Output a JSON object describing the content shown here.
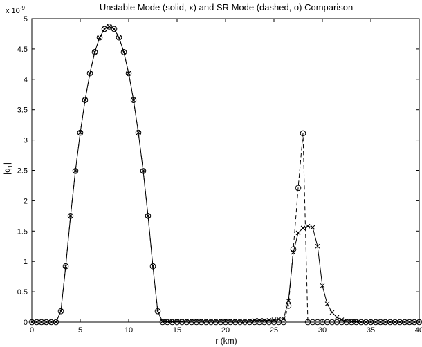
{
  "chart_data": {
    "type": "line",
    "title": "Unstable Mode (solid, x) and SR Mode (dashed, o) Comparison",
    "xlabel": "r (km)",
    "ylabel": "|q",
    "ylabel_sub": "1",
    "ylabel_end": "|",
    "y_exponent_label": "x 10",
    "y_exponent": "-9",
    "xlim": [
      0,
      40
    ],
    "ylim": [
      0,
      5
    ],
    "xticks": [
      "0",
      "5",
      "10",
      "15",
      "20",
      "25",
      "30",
      "35",
      "40"
    ],
    "yticks": [
      "0",
      "0.5",
      "1",
      "1.5",
      "2",
      "2.5",
      "3",
      "3.5",
      "4",
      "4.5",
      "5"
    ],
    "grid": false,
    "series": [
      {
        "name": "Unstable Mode",
        "line": "solid",
        "marker": "x",
        "x": [
          0,
          0.5,
          1,
          1.5,
          2,
          2.5,
          3,
          3.5,
          4,
          4.5,
          5,
          5.5,
          6,
          6.5,
          7,
          7.5,
          8,
          8.5,
          9,
          9.5,
          10,
          10.5,
          11,
          11.5,
          12,
          12.5,
          13,
          13.5,
          14,
          14.5,
          15,
          15.5,
          16,
          16.5,
          17,
          17.5,
          18,
          18.5,
          19,
          19.5,
          20,
          20.5,
          21,
          21.5,
          22,
          22.5,
          23,
          23.5,
          24,
          24.5,
          25,
          25.5,
          26,
          26.5,
          27,
          27.5,
          28,
          28.5,
          29,
          29.5,
          30,
          30.5,
          31,
          31.5,
          32,
          32.5,
          33,
          33.5,
          34,
          34.5,
          35,
          35.5,
          36,
          36.5,
          37,
          37.5,
          38,
          38.5,
          39,
          39.5,
          40
        ],
        "y": [
          0,
          0,
          0,
          0,
          0,
          0,
          0.18,
          0.92,
          1.75,
          2.49,
          3.12,
          3.66,
          4.1,
          4.45,
          4.69,
          4.83,
          4.87,
          4.83,
          4.69,
          4.45,
          4.1,
          3.66,
          3.12,
          2.49,
          1.75,
          0.92,
          0.18,
          0.01,
          0.01,
          0.01,
          0.01,
          0.01,
          0.02,
          0.02,
          0.02,
          0.02,
          0.02,
          0.02,
          0.02,
          0.02,
          0.02,
          0.02,
          0.02,
          0.02,
          0.02,
          0.02,
          0.03,
          0.03,
          0.03,
          0.03,
          0.04,
          0.05,
          0.06,
          0.35,
          1.15,
          1.47,
          1.55,
          1.58,
          1.56,
          1.25,
          0.6,
          0.3,
          0.16,
          0.08,
          0.04,
          0.02,
          0.01,
          0.01,
          0,
          0,
          0,
          0,
          0,
          0,
          0,
          0,
          0,
          0,
          0,
          0,
          0
        ]
      },
      {
        "name": "SR Mode",
        "line": "dashed",
        "marker": "o",
        "x": [
          0,
          0.5,
          1,
          1.5,
          2,
          2.5,
          3,
          3.5,
          4,
          4.5,
          5,
          5.5,
          6,
          6.5,
          7,
          7.5,
          8,
          8.5,
          9,
          9.5,
          10,
          10.5,
          11,
          11.5,
          12,
          12.5,
          13,
          13.5,
          14,
          14.5,
          15,
          15.5,
          16,
          16.5,
          17,
          17.5,
          18,
          18.5,
          19,
          19.5,
          20,
          20.5,
          21,
          21.5,
          22,
          22.5,
          23,
          23.5,
          24,
          24.5,
          25,
          25.5,
          26,
          26.5,
          27,
          27.5,
          28,
          28.5,
          29,
          29.5,
          30,
          30.5,
          31,
          31.5,
          32,
          32.5,
          33,
          33.5,
          34,
          34.5,
          35,
          35.5,
          36,
          36.5,
          37,
          37.5,
          38,
          38.5,
          39,
          39.5,
          40
        ],
        "y": [
          0,
          0,
          0,
          0,
          0,
          0,
          0.18,
          0.92,
          1.75,
          2.49,
          3.12,
          3.66,
          4.1,
          4.45,
          4.69,
          4.83,
          4.87,
          4.83,
          4.69,
          4.45,
          4.1,
          3.66,
          3.12,
          2.49,
          1.75,
          0.92,
          0.18,
          0,
          0,
          0,
          0,
          0,
          0,
          0,
          0,
          0,
          0,
          0,
          0,
          0,
          0,
          0,
          0,
          0,
          0,
          0,
          0,
          0,
          0,
          0,
          0,
          0,
          0,
          0.27,
          1.2,
          2.21,
          3.11,
          0,
          0,
          0,
          0,
          0,
          0,
          0,
          0,
          0,
          0,
          0,
          0,
          0,
          0,
          0,
          0,
          0,
          0,
          0,
          0,
          0,
          0,
          0,
          0
        ]
      }
    ]
  }
}
